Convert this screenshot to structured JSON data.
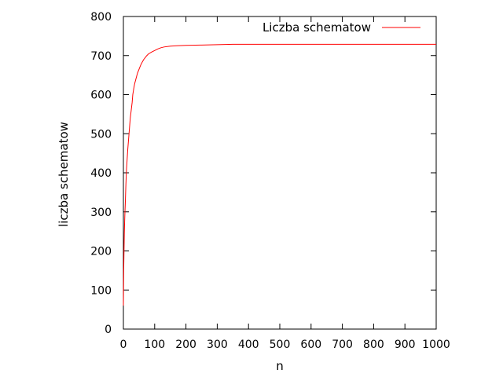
{
  "chart_data": {
    "type": "line",
    "title": "",
    "xlabel": "n",
    "ylabel": "liczba schematow",
    "xlim": [
      0,
      1000
    ],
    "ylim": [
      0,
      800
    ],
    "x_ticks": [
      "0",
      "100",
      "200",
      "300",
      "400",
      "500",
      "600",
      "700",
      "800",
      "900",
      "1000"
    ],
    "y_ticks": [
      "0",
      "100",
      "200",
      "300",
      "400",
      "500",
      "600",
      "700",
      "800"
    ],
    "grid": false,
    "legend_position": "top-right",
    "series": [
      {
        "name": "Liczba schematow",
        "color": "#ff0000",
        "x": [
          0,
          1,
          2,
          3,
          4,
          5,
          6,
          8,
          10,
          12,
          14,
          16,
          18,
          20,
          22,
          25,
          28,
          30,
          33,
          36,
          40,
          45,
          50,
          55,
          60,
          65,
          70,
          75,
          80,
          90,
          100,
          110,
          120,
          130,
          150,
          170,
          200,
          250,
          300,
          350,
          400,
          500,
          600,
          700,
          800,
          900,
          1000
        ],
        "y": [
          60,
          150,
          200,
          245,
          275,
          300,
          320,
          370,
          410,
          435,
          460,
          480,
          500,
          520,
          540,
          560,
          580,
          600,
          615,
          628,
          640,
          655,
          665,
          675,
          683,
          690,
          695,
          700,
          704,
          709,
          713,
          717,
          720,
          722,
          724,
          725,
          726,
          727,
          728,
          729,
          729,
          729,
          729,
          729,
          729,
          729,
          729
        ]
      }
    ]
  }
}
